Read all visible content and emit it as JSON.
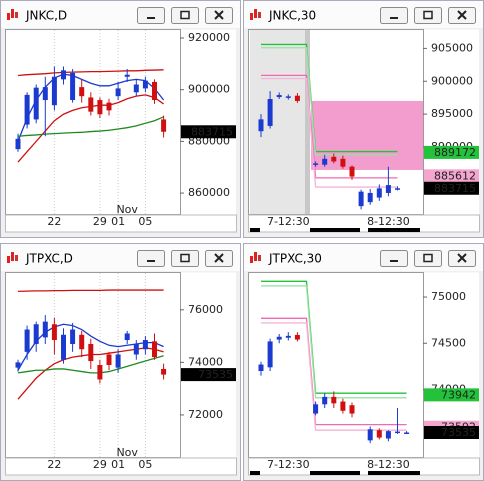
{
  "chart_data": [
    {
      "type": "candlestick",
      "title": "JNKC,D",
      "up_color": "#1a3ad0",
      "down_color": "#d01010",
      "ylim": [
        851900,
        923100
      ],
      "yticks": [
        860000,
        880000,
        900000,
        920000
      ],
      "categories": [
        null,
        null,
        null,
        null,
        "22",
        null,
        null,
        null,
        null,
        "29",
        null,
        "01",
        null,
        null,
        "05",
        null,
        null
      ],
      "categories2": [
        null,
        null,
        null,
        null,
        null,
        null,
        null,
        null,
        null,
        null,
        null,
        null,
        "Nov",
        null,
        null,
        null,
        null
      ],
      "open": [
        877000,
        886500,
        888500,
        896000,
        894000,
        904000,
        896000,
        901000,
        897000,
        896000,
        895000,
        897500,
        905000,
        899000,
        900500,
        903000,
        888500
      ],
      "high": [
        883000,
        899000,
        902000,
        905000,
        909000,
        909000,
        908000,
        904000,
        899000,
        897000,
        896500,
        903000,
        908000,
        904000,
        905000,
        904000,
        890000
      ],
      "low": [
        876000,
        885000,
        887000,
        882000,
        892000,
        902000,
        895000,
        895000,
        890000,
        889000,
        890000,
        896000,
        903000,
        897500,
        899000,
        894500,
        881500
      ],
      "close": [
        881000,
        898000,
        900800,
        901000,
        905000,
        907500,
        906500,
        897500,
        891500,
        890500,
        892000,
        900500,
        905800,
        902000,
        903500,
        896000,
        883715
      ],
      "lines": [
        {
          "color": "#d01010",
          "values": [
            905500,
            905800,
            906000,
            906200,
            906500,
            906700,
            906800,
            906900,
            907000,
            907000,
            907100,
            907200,
            907300,
            907300,
            907500,
            907600,
            907700
          ]
        },
        {
          "color": "#1a3ad0",
          "values": [
            880000,
            889000,
            896000,
            901000,
            904500,
            906000,
            905500,
            904000,
            902500,
            901500,
            901500,
            902500,
            903500,
            904000,
            903500,
            900500,
            896000
          ]
        },
        {
          "color": "#d01010",
          "values": [
            872000,
            876000,
            880000,
            884000,
            888000,
            890500,
            892000,
            893000,
            893500,
            894000,
            894000,
            895000,
            896500,
            897500,
            898000,
            897000,
            894500
          ]
        },
        {
          "color": "#1f8a1f",
          "values": [
            882000,
            882300,
            882500,
            882800,
            883000,
            883200,
            883400,
            883500,
            883800,
            884000,
            884300,
            884800,
            885300,
            886000,
            887000,
            888000,
            889500
          ]
        }
      ],
      "price_labels": [
        {
          "value": 883715,
          "color": "#000000"
        }
      ]
    },
    {
      "type": "candlestick",
      "title": "JNKC,30",
      "up_color": "#1a3ad0",
      "down_color": "#d01010",
      "ylim": [
        879800,
        907800
      ],
      "yticks": [
        890000,
        895000,
        900000,
        905000
      ],
      "categories": [
        null,
        null,
        null,
        "7-12:30",
        null,
        null,
        null,
        null,
        null,
        null,
        null,
        null,
        null,
        null,
        "8-12:30",
        null
      ],
      "open": [
        892400,
        893200,
        897600,
        897500,
        897800,
        null,
        887300,
        887300,
        888500,
        888200,
        887000,
        881000,
        881600,
        882300,
        883000,
        883600
      ],
      "high": [
        895000,
        898500,
        898300,
        898000,
        898200,
        null,
        887800,
        888800,
        889000,
        888700,
        887200,
        883500,
        883600,
        884300,
        887000,
        884000
      ],
      "low": [
        891500,
        892800,
        897300,
        897200,
        896700,
        null,
        887000,
        887000,
        887500,
        886700,
        885000,
        880500,
        881200,
        881800,
        882500,
        883400
      ],
      "close": [
        894200,
        897300,
        897900,
        897700,
        897000,
        null,
        887500,
        888200,
        887800,
        887000,
        885500,
        883200,
        883000,
        883700,
        884200,
        883715
      ],
      "zones": [
        {
          "color": "#f08cc4",
          "low": 886500,
          "high": 897000,
          "start": 6
        }
      ],
      "lines": [
        {
          "color": "#22c33a",
          "values": [
            905600,
            905600,
            905600,
            905600,
            905600,
            905600,
            889300,
            889300,
            889300,
            889300,
            889300,
            889300,
            889300,
            889300,
            889300,
            889300
          ]
        },
        {
          "color": "#9be0a5",
          "values": [
            905100,
            905100,
            905100,
            905100,
            905100,
            905100,
            888800,
            888800,
            888800,
            888800,
            888800,
            888800,
            888800,
            888800,
            888800,
            888800
          ]
        },
        {
          "color": "#f06ab0",
          "values": [
            900900,
            900900,
            900900,
            900900,
            900900,
            900900,
            885300,
            885300,
            885300,
            885300,
            885300,
            885300,
            885300,
            885300,
            885300,
            885300
          ]
        },
        {
          "color": "#f5b3d6",
          "values": [
            900400,
            900400,
            900400,
            900400,
            900400,
            900400,
            883900,
            883900,
            883900,
            883900,
            883900,
            883900,
            883900,
            883900,
            883900,
            883900
          ]
        }
      ],
      "price_labels": [
        {
          "value": 889172,
          "color": "#22c33a"
        },
        {
          "value": 885612,
          "color": "#f5a6cf"
        },
        {
          "value": 883715,
          "color": "#000000"
        }
      ]
    },
    {
      "type": "candlestick",
      "title": "JTPXC,D",
      "up_color": "#1a3ad0",
      "down_color": "#d01010",
      "ylim": [
        70400,
        77400
      ],
      "yticks": [
        72000,
        74000,
        76000
      ],
      "categories": [
        null,
        null,
        null,
        null,
        "22",
        null,
        null,
        null,
        null,
        "29",
        null,
        "01",
        null,
        null,
        "05",
        null,
        null
      ],
      "categories2": [
        null,
        null,
        null,
        null,
        null,
        null,
        null,
        null,
        null,
        null,
        null,
        null,
        "Nov",
        null,
        null,
        null,
        null
      ],
      "open": [
        73800,
        74400,
        74700,
        74950,
        75450,
        74100,
        74700,
        75050,
        74700,
        73900,
        74300,
        73800,
        74850,
        74300,
        74500,
        74800,
        73750
      ],
      "high": [
        74100,
        75400,
        75550,
        75800,
        75700,
        75300,
        75500,
        75200,
        74900,
        74100,
        74400,
        74500,
        75200,
        74850,
        75000,
        75100,
        73950
      ],
      "low": [
        73650,
        74100,
        74400,
        74700,
        74300,
        73950,
        74400,
        74200,
        73750,
        73200,
        73700,
        73600,
        74700,
        74100,
        74300,
        74100,
        73350
      ],
      "close": [
        74000,
        75250,
        75450,
        75550,
        74850,
        75050,
        75250,
        74500,
        74050,
        73350,
        73900,
        74300,
        75100,
        74700,
        74850,
        74200,
        73535
      ],
      "lines": [
        {
          "color": "#d01010",
          "values": [
            76700,
            76710,
            76720,
            76720,
            76730,
            76730,
            76740,
            76740,
            76740,
            76740,
            76750,
            76750,
            76750,
            76750,
            76750,
            76750,
            76750
          ]
        },
        {
          "color": "#1a3ad0",
          "values": [
            73700,
            74300,
            74800,
            75150,
            75350,
            75450,
            75400,
            75250,
            75000,
            74800,
            74650,
            74600,
            74650,
            74700,
            74750,
            74750,
            74600
          ]
        },
        {
          "color": "#d01010",
          "values": [
            72600,
            73000,
            73400,
            73700,
            73950,
            74100,
            74200,
            74250,
            74300,
            74300,
            74350,
            74400,
            74450,
            74500,
            74550,
            74500,
            74400
          ]
        },
        {
          "color": "#1f8a1f",
          "values": [
            73600,
            73650,
            73700,
            73700,
            73750,
            73750,
            73700,
            73650,
            73600,
            73600,
            73650,
            73750,
            73850,
            73950,
            74050,
            74150,
            74250
          ]
        }
      ],
      "price_labels": [
        {
          "value": 73535,
          "color": "#000000"
        }
      ]
    },
    {
      "type": "candlestick",
      "title": "JTPXC,30",
      "up_color": "#1a3ad0",
      "down_color": "#d01010",
      "ylim": [
        73270,
        75260
      ],
      "yticks": [
        74000,
        74500,
        75000
      ],
      "categories": [
        null,
        null,
        null,
        "7-12:30",
        null,
        null,
        null,
        null,
        null,
        null,
        null,
        null,
        null,
        null,
        "8-12:30",
        null,
        null
      ],
      "open": [
        74200,
        74240,
        74540,
        74560,
        74590,
        null,
        73740,
        73840,
        73920,
        73870,
        73830,
        null,
        73450,
        73560,
        73470,
        73530,
        73535
      ],
      "high": [
        74300,
        74550,
        74600,
        74620,
        74620,
        null,
        73870,
        73960,
        73980,
        73900,
        73860,
        null,
        73600,
        73580,
        73560,
        73800,
        73550
      ],
      "low": [
        74150,
        74200,
        74500,
        74530,
        74520,
        null,
        73720,
        73800,
        73800,
        73740,
        73700,
        null,
        73420,
        73460,
        73440,
        73520,
        73520
      ],
      "close": [
        74270,
        74520,
        74570,
        74580,
        74540,
        null,
        73840,
        73920,
        73850,
        73770,
        73740,
        null,
        73570,
        73480,
        73550,
        73545,
        73535
      ],
      "lines": [
        {
          "color": "#22c33a",
          "values": [
            75170,
            75170,
            75170,
            75170,
            75170,
            75170,
            73960,
            73960,
            73960,
            73960,
            73960,
            73960,
            73960,
            73960,
            73960,
            73960,
            73960
          ]
        },
        {
          "color": "#9be0a5",
          "values": [
            75120,
            75120,
            75120,
            75120,
            75120,
            75120,
            73910,
            73910,
            73910,
            73910,
            73910,
            73910,
            73910,
            73910,
            73910,
            73910,
            73910
          ]
        },
        {
          "color": "#f06ab0",
          "values": [
            74770,
            74770,
            74770,
            74770,
            74770,
            74770,
            73620,
            73620,
            73620,
            73620,
            73620,
            73620,
            73620,
            73620,
            73620,
            73620,
            73620
          ]
        },
        {
          "color": "#f5b3d6",
          "values": [
            74720,
            74720,
            74720,
            74720,
            74720,
            74720,
            73560,
            73560,
            73560,
            73560,
            73560,
            73560,
            73560,
            73560,
            73560,
            73560,
            73560
          ]
        }
      ],
      "price_labels": [
        {
          "value": 73942,
          "color": "#22c33a"
        },
        {
          "value": 73592,
          "color": "#f5a6cf"
        },
        {
          "value": 73535,
          "color": "#000000"
        }
      ]
    }
  ]
}
